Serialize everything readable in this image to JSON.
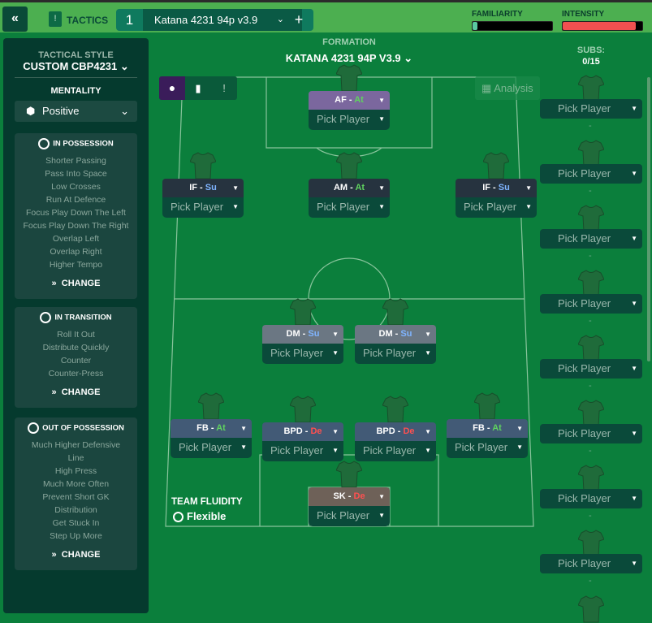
{
  "topbar": {
    "back_icon": "double-chevron-left-icon",
    "tactics_label": "TACTICS",
    "tab_number": "1",
    "tab_name": "Katana 4231 94p v3.9",
    "add_label": "+",
    "familiarity_label": "FAMILIARITY",
    "intensity_label": "INTENSITY",
    "familiarity_level": 0.06,
    "intensity_level": 0.92,
    "familiarity_color": "#5ac8a0",
    "intensity_color": "#f05050"
  },
  "left": {
    "style_heading": "TACTICAL STYLE",
    "style_value": "CUSTOM CBP4231",
    "mentality_heading": "MENTALITY",
    "mentality_value": "Positive",
    "sections": [
      {
        "title": "IN POSSESSION",
        "icon": "football-icon",
        "items": [
          "Shorter Passing",
          "Pass Into Space",
          "Low Crosses",
          "Run At Defence",
          "Focus Play Down The Left",
          "Focus Play Down The Right",
          "Overlap Left",
          "Overlap Right",
          "Higher Tempo"
        ],
        "change": "CHANGE"
      },
      {
        "title": "IN TRANSITION",
        "icon": "transition-icon",
        "items": [
          "Roll It Out",
          "Distribute Quickly",
          "Counter",
          "Counter-Press"
        ],
        "change": "CHANGE"
      },
      {
        "title": "OUT OF POSSESSION",
        "icon": "defence-icon",
        "items": [
          "Much Higher Defensive",
          "Line",
          "High Press",
          "Much More Often",
          "Prevent Short GK",
          "Distribution",
          "Get Stuck In",
          "Step Up More"
        ],
        "change": "CHANGE"
      }
    ]
  },
  "formation": {
    "heading": "FORMATION",
    "name": "KATANA 4231 94P V3.9",
    "analysis": "Analysis",
    "fluidity_heading": "TEAM FLUIDITY",
    "fluidity_value": "Flexible"
  },
  "duty_colors": {
    "At": "#5fd35f",
    "Su": "#7fb4ff",
    "De": "#ff5050"
  },
  "players": [
    {
      "role": "AF",
      "duty": "At",
      "pick": "Pick Player",
      "color": "#7b679e"
    },
    {
      "role": "IF",
      "duty": "Su",
      "pick": "Pick Player",
      "color": "#26333f"
    },
    {
      "role": "AM",
      "duty": "At",
      "pick": "Pick Player",
      "color": "#26333f"
    },
    {
      "role": "IF",
      "duty": "Su",
      "pick": "Pick Player",
      "color": "#26333f"
    },
    {
      "role": "DM",
      "duty": "Su",
      "pick": "Pick Player",
      "color": "#6b7783"
    },
    {
      "role": "DM",
      "duty": "Su",
      "pick": "Pick Player",
      "color": "#6b7783"
    },
    {
      "role": "FB",
      "duty": "At",
      "pick": "Pick Player",
      "color": "#425a76"
    },
    {
      "role": "BPD",
      "duty": "De",
      "pick": "Pick Player",
      "color": "#425a76"
    },
    {
      "role": "BPD",
      "duty": "De",
      "pick": "Pick Player",
      "color": "#425a76"
    },
    {
      "role": "FB",
      "duty": "At",
      "pick": "Pick Player",
      "color": "#425a76"
    },
    {
      "role": "SK",
      "duty": "De",
      "pick": "Pick Player",
      "color": "#6e6158"
    }
  ],
  "subs": {
    "heading": "SUBS:",
    "count": "0/15",
    "items": [
      "Pick Player",
      "Pick Player",
      "Pick Player",
      "Pick Player",
      "Pick Player",
      "Pick Player",
      "Pick Player",
      "Pick Player"
    ],
    "separator": "-"
  }
}
